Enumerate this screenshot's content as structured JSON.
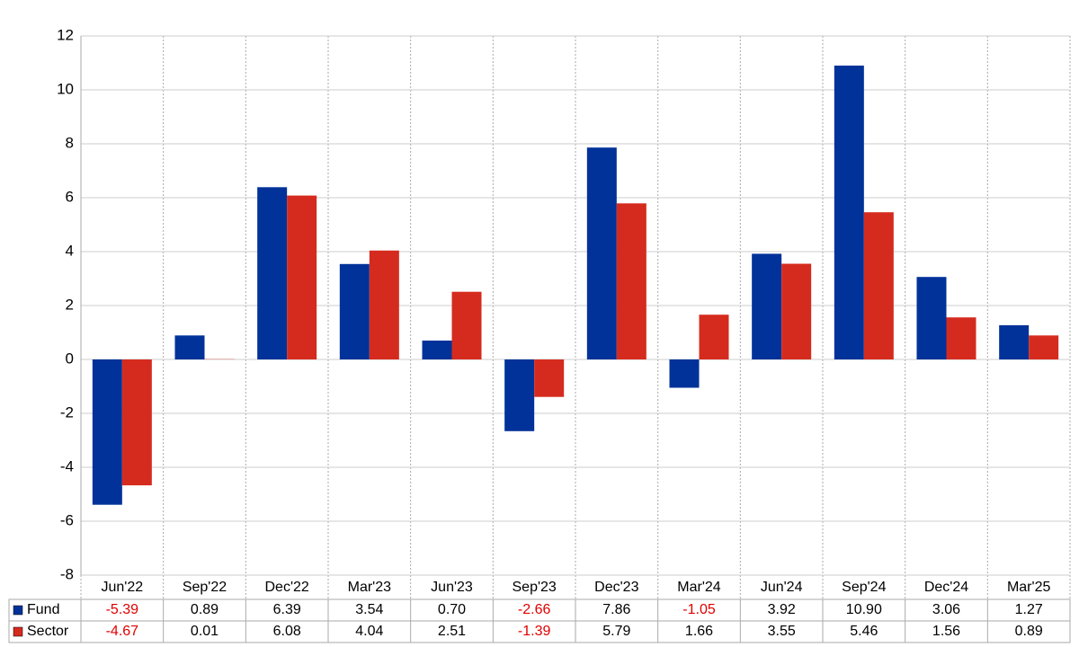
{
  "chart_data": {
    "type": "bar",
    "categories": [
      "Jun'22",
      "Sep'22",
      "Dec'22",
      "Mar'23",
      "Jun'23",
      "Sep'23",
      "Dec'23",
      "Mar'24",
      "Jun'24",
      "Sep'24",
      "Dec'24",
      "Mar'25"
    ],
    "series": [
      {
        "name": "Fund",
        "color": "#003299",
        "values": [
          -5.39,
          0.89,
          6.39,
          3.54,
          0.7,
          -2.66,
          7.86,
          -1.05,
          3.92,
          10.9,
          3.06,
          1.27
        ],
        "value_labels": [
          "-5.39",
          "0.89",
          "6.39",
          "3.54",
          "0.70",
          "-2.66",
          "7.86",
          "-1.05",
          "3.92",
          "10.90",
          "3.06",
          "1.27"
        ]
      },
      {
        "name": "Sector",
        "color": "#d52b1e",
        "values": [
          -4.67,
          0.01,
          6.08,
          4.04,
          2.51,
          -1.39,
          5.79,
          1.66,
          3.55,
          5.46,
          1.56,
          0.89
        ],
        "value_labels": [
          "-4.67",
          "0.01",
          "6.08",
          "4.04",
          "2.51",
          "-1.39",
          "5.79",
          "1.66",
          "3.55",
          "5.46",
          "1.56",
          "0.89"
        ]
      }
    ],
    "ylim": [
      -8,
      12
    ],
    "yticks": [
      -8,
      -6,
      -4,
      -2,
      0,
      2,
      4,
      6,
      8,
      10,
      12
    ],
    "grid": true
  }
}
